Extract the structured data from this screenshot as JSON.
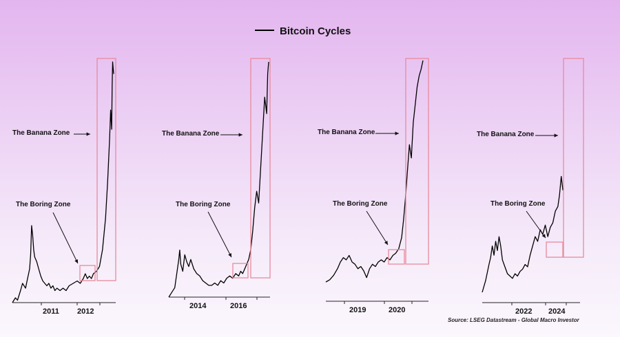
{
  "chart_data": {
    "type": "line",
    "title": "Bitcoin Cycles",
    "legend": "top-center",
    "source": "Source: LSEG Datastream - Global Macro Investor",
    "colors": {
      "line": "#000000",
      "box": "#e88a9c",
      "background_top": "#e3b5ef",
      "background_bottom": "#fbf7fd"
    },
    "panels": [
      {
        "x_ticks": [
          "2011",
          "2012"
        ],
        "banana_label": "The Banana Zone",
        "boring_label": "The Boring Zone",
        "series": [
          [
            0,
            0
          ],
          [
            0.03,
            0.02
          ],
          [
            0.05,
            0.01
          ],
          [
            0.08,
            0.05
          ],
          [
            0.1,
            0.08
          ],
          [
            0.13,
            0.06
          ],
          [
            0.15,
            0.1
          ],
          [
            0.17,
            0.14
          ],
          [
            0.18,
            0.2
          ],
          [
            0.19,
            0.32
          ],
          [
            0.2,
            0.28
          ],
          [
            0.21,
            0.22
          ],
          [
            0.22,
            0.19
          ],
          [
            0.24,
            0.17
          ],
          [
            0.26,
            0.14
          ],
          [
            0.28,
            0.11
          ],
          [
            0.3,
            0.09
          ],
          [
            0.32,
            0.08
          ],
          [
            0.34,
            0.07
          ],
          [
            0.36,
            0.08
          ],
          [
            0.38,
            0.06
          ],
          [
            0.4,
            0.07
          ],
          [
            0.42,
            0.05
          ],
          [
            0.44,
            0.06
          ],
          [
            0.47,
            0.05
          ],
          [
            0.5,
            0.06
          ],
          [
            0.53,
            0.05
          ],
          [
            0.56,
            0.07
          ],
          [
            0.6,
            0.08
          ],
          [
            0.64,
            0.09
          ],
          [
            0.67,
            0.08
          ],
          [
            0.7,
            0.1
          ],
          [
            0.72,
            0.12
          ],
          [
            0.74,
            0.1
          ],
          [
            0.76,
            0.11
          ],
          [
            0.78,
            0.1
          ],
          [
            0.8,
            0.12
          ],
          [
            0.83,
            0.13
          ],
          [
            0.86,
            0.15
          ],
          [
            0.89,
            0.22
          ],
          [
            0.92,
            0.35
          ],
          [
            0.94,
            0.5
          ],
          [
            0.96,
            0.68
          ],
          [
            0.97,
            0.8
          ],
          [
            0.98,
            0.72
          ],
          [
            0.985,
            0.9
          ],
          [
            0.99,
            1.0
          ],
          [
            1.0,
            0.95
          ]
        ]
      },
      {
        "x_ticks": [
          "2014",
          "2016"
        ],
        "banana_label": "The Banana Zone",
        "boring_label": "The Boring Zone",
        "series": [
          [
            0,
            0
          ],
          [
            0.03,
            0.02
          ],
          [
            0.06,
            0.04
          ],
          [
            0.08,
            0.1
          ],
          [
            0.1,
            0.16
          ],
          [
            0.11,
            0.2
          ],
          [
            0.12,
            0.14
          ],
          [
            0.14,
            0.11
          ],
          [
            0.16,
            0.18
          ],
          [
            0.18,
            0.15
          ],
          [
            0.2,
            0.13
          ],
          [
            0.22,
            0.16
          ],
          [
            0.25,
            0.12
          ],
          [
            0.28,
            0.1
          ],
          [
            0.31,
            0.09
          ],
          [
            0.34,
            0.07
          ],
          [
            0.37,
            0.06
          ],
          [
            0.4,
            0.05
          ],
          [
            0.43,
            0.05
          ],
          [
            0.46,
            0.06
          ],
          [
            0.49,
            0.05
          ],
          [
            0.52,
            0.07
          ],
          [
            0.55,
            0.06
          ],
          [
            0.58,
            0.08
          ],
          [
            0.61,
            0.09
          ],
          [
            0.64,
            0.08
          ],
          [
            0.67,
            0.1
          ],
          [
            0.7,
            0.09
          ],
          [
            0.72,
            0.11
          ],
          [
            0.74,
            0.1
          ],
          [
            0.76,
            0.12
          ],
          [
            0.78,
            0.14
          ],
          [
            0.8,
            0.16
          ],
          [
            0.82,
            0.2
          ],
          [
            0.84,
            0.28
          ],
          [
            0.86,
            0.38
          ],
          [
            0.88,
            0.45
          ],
          [
            0.9,
            0.4
          ],
          [
            0.92,
            0.55
          ],
          [
            0.94,
            0.7
          ],
          [
            0.96,
            0.85
          ],
          [
            0.98,
            0.78
          ],
          [
            0.99,
            0.95
          ],
          [
            1.0,
            1.0
          ]
        ]
      },
      {
        "x_ticks": [
          "2019",
          "2020"
        ],
        "banana_label": "The Banana Zone",
        "boring_label": "The Boring Zone",
        "series": [
          [
            0,
            0.0
          ],
          [
            0.04,
            0.01
          ],
          [
            0.08,
            0.03
          ],
          [
            0.12,
            0.06
          ],
          [
            0.15,
            0.09
          ],
          [
            0.18,
            0.11
          ],
          [
            0.21,
            0.1
          ],
          [
            0.24,
            0.12
          ],
          [
            0.27,
            0.09
          ],
          [
            0.3,
            0.08
          ],
          [
            0.33,
            0.06
          ],
          [
            0.36,
            0.07
          ],
          [
            0.39,
            0.05
          ],
          [
            0.42,
            0.02
          ],
          [
            0.45,
            0.06
          ],
          [
            0.48,
            0.08
          ],
          [
            0.51,
            0.07
          ],
          [
            0.54,
            0.09
          ],
          [
            0.57,
            0.1
          ],
          [
            0.6,
            0.09
          ],
          [
            0.63,
            0.11
          ],
          [
            0.66,
            0.1
          ],
          [
            0.69,
            0.12
          ],
          [
            0.72,
            0.13
          ],
          [
            0.75,
            0.15
          ],
          [
            0.78,
            0.2
          ],
          [
            0.8,
            0.28
          ],
          [
            0.82,
            0.38
          ],
          [
            0.84,
            0.5
          ],
          [
            0.86,
            0.62
          ],
          [
            0.88,
            0.56
          ],
          [
            0.9,
            0.72
          ],
          [
            0.92,
            0.8
          ],
          [
            0.94,
            0.88
          ],
          [
            0.96,
            0.93
          ],
          [
            0.98,
            0.96
          ],
          [
            1.0,
            1.0
          ]
        ]
      },
      {
        "x_ticks": [
          "2022",
          "2024"
        ],
        "banana_label": "The Banana Zone",
        "boring_label": "The Boring Zone",
        "series": [
          [
            0,
            0.0
          ],
          [
            0.04,
            0.05
          ],
          [
            0.08,
            0.12
          ],
          [
            0.1,
            0.15
          ],
          [
            0.12,
            0.2
          ],
          [
            0.14,
            0.16
          ],
          [
            0.16,
            0.22
          ],
          [
            0.18,
            0.18
          ],
          [
            0.2,
            0.24
          ],
          [
            0.22,
            0.2
          ],
          [
            0.24,
            0.14
          ],
          [
            0.27,
            0.11
          ],
          [
            0.3,
            0.08
          ],
          [
            0.33,
            0.07
          ],
          [
            0.36,
            0.06
          ],
          [
            0.39,
            0.08
          ],
          [
            0.42,
            0.07
          ],
          [
            0.45,
            0.09
          ],
          [
            0.48,
            0.1
          ],
          [
            0.51,
            0.12
          ],
          [
            0.54,
            0.11
          ],
          [
            0.57,
            0.16
          ],
          [
            0.6,
            0.2
          ],
          [
            0.63,
            0.24
          ],
          [
            0.66,
            0.22
          ],
          [
            0.69,
            0.27
          ],
          [
            0.72,
            0.25
          ],
          [
            0.75,
            0.29
          ],
          [
            0.78,
            0.24
          ],
          [
            0.81,
            0.28
          ],
          [
            0.84,
            0.3
          ],
          [
            0.87,
            0.35
          ],
          [
            0.9,
            0.37
          ],
          [
            0.92,
            0.42
          ],
          [
            0.94,
            0.5
          ],
          [
            0.96,
            0.44
          ]
        ]
      }
    ]
  }
}
